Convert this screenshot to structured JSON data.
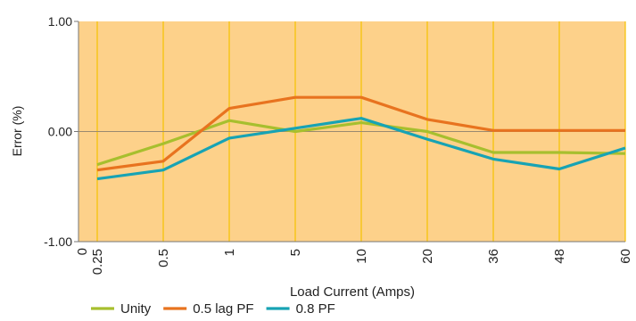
{
  "chart_data": {
    "type": "line",
    "xlabel": "Load Current (Amps)",
    "ylabel": "Error (%)",
    "ylim": [
      -1.0,
      1.0
    ],
    "yticks": [
      "1.00",
      "0.00",
      "-1.00"
    ],
    "yticks_values": [
      1.0,
      0.0,
      -1.0
    ],
    "x_edge_label": "0",
    "categories": [
      "0.25",
      "0.5",
      "1",
      "5",
      "10",
      "20",
      "36",
      "48",
      "60"
    ],
    "grid": "vertical",
    "legend_position": "bottom",
    "plot_background": "#fdd18a",
    "grid_color": "#f6c200",
    "series": [
      {
        "name": "Unity",
        "color": "#a7bf2e",
        "values": [
          -0.3,
          -0.11,
          0.1,
          0.0,
          0.08,
          0.0,
          -0.19,
          -0.19,
          -0.2
        ]
      },
      {
        "name": "0.5 lag PF",
        "color": "#e8731f",
        "values": [
          -0.35,
          -0.27,
          0.21,
          0.31,
          0.31,
          0.11,
          0.01,
          0.01,
          0.01
        ]
      },
      {
        "name": "0.8 PF",
        "color": "#17a3b4",
        "values": [
          -0.43,
          -0.35,
          -0.06,
          0.03,
          0.12,
          -0.07,
          -0.25,
          -0.34,
          -0.15
        ]
      }
    ]
  }
}
